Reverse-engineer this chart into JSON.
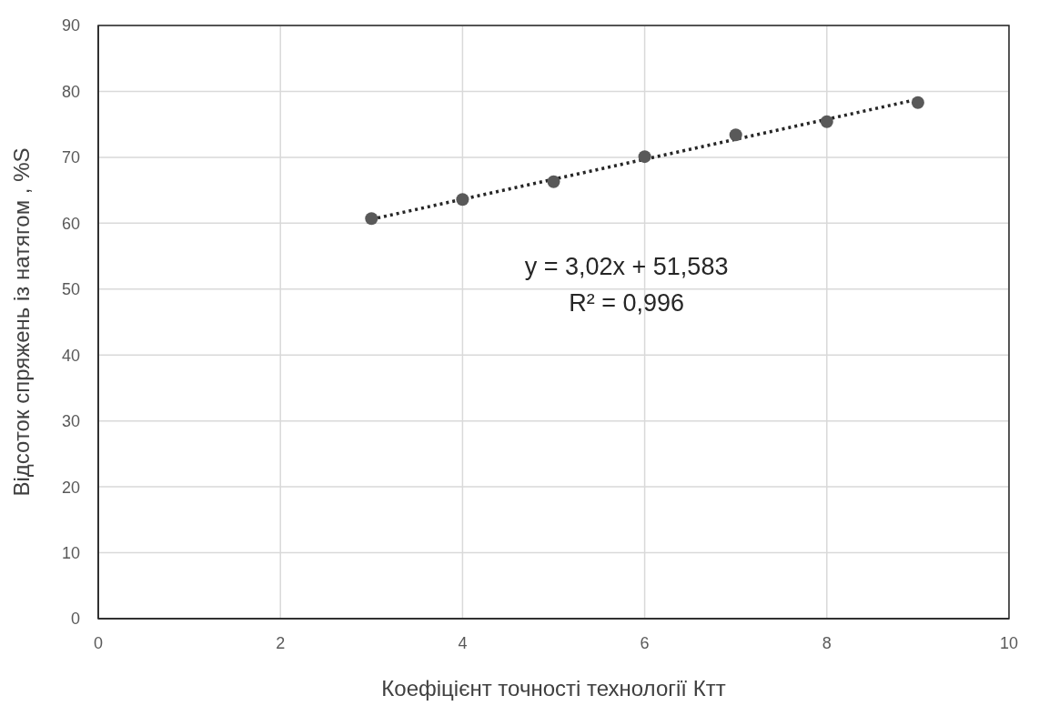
{
  "chart_data": {
    "type": "scatter",
    "xlabel": "Коефіцієнт точності технології Ктт",
    "ylabel": "Відсоток спряжень із натягом , %S",
    "x": [
      3,
      4,
      5,
      6,
      7,
      8,
      9
    ],
    "series": [
      {
        "color": "#595959",
        "values": [
          60.7,
          63.6,
          66.3,
          70.1,
          73.4,
          75.4,
          78.3
        ]
      },
      {
        "type": "line",
        "x": [
          3,
          9
        ],
        "color": "#262626",
        "marker": "none",
        "values": [
          60.6,
          78.8
        ]
      }
    ],
    "annotations": [
      "y = 3,02x + 51,583",
      "R² = 0,996"
    ],
    "xlim": [
      0,
      10
    ],
    "xticks": [
      0,
      2,
      4,
      6,
      8,
      10
    ],
    "ylim": [
      0,
      90
    ],
    "yticks": [
      0,
      10,
      20,
      30,
      40,
      50,
      60,
      70,
      80,
      90
    ],
    "grid": true,
    "marker": "circle",
    "line_style": "dotted"
  }
}
